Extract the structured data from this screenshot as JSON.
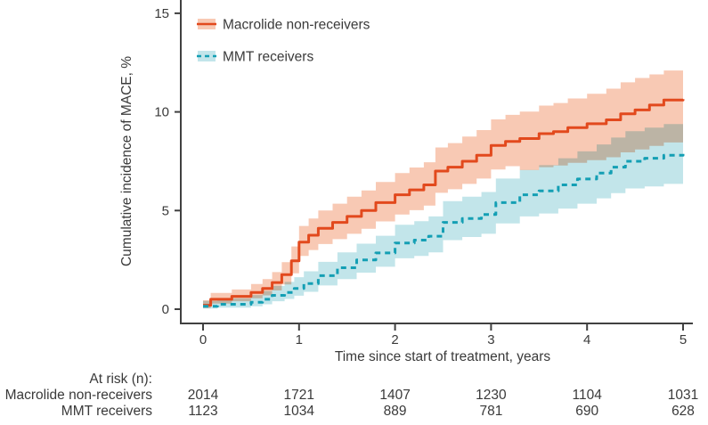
{
  "chart_data": {
    "type": "line",
    "subtype": "cumulative_incidence_step_curves_with_confidence_bands",
    "title": "",
    "xlabel": "Time since start of treatment, years",
    "ylabel": "Cumulative incidence of MACE, %",
    "xlim": [
      0,
      5
    ],
    "ylim": [
      0,
      15
    ],
    "x_ticks": [
      "0",
      "1",
      "2",
      "3",
      "4",
      "5"
    ],
    "y_ticks": [
      "0",
      "5",
      "10",
      "15"
    ],
    "grid": false,
    "legend_position": "top-left inside plot",
    "axis_color": "#404040",
    "text_color": "#3a3a3a",
    "band_overlap_color": "#b5bdb2",
    "series": [
      {
        "name": "Macrolide non-receivers",
        "line_style": "solid",
        "color": "#e2491d",
        "band_color": "#f8c9b4",
        "points_t_v_lo_hi": [
          [
            0.0,
            0.2,
            0.06,
            0.45
          ],
          [
            0.08,
            0.5,
            0.28,
            0.82
          ],
          [
            0.3,
            0.65,
            0.4,
            1.0
          ],
          [
            0.5,
            0.85,
            0.55,
            1.28
          ],
          [
            0.62,
            1.05,
            0.7,
            1.52
          ],
          [
            0.72,
            1.35,
            0.95,
            1.88
          ],
          [
            0.82,
            1.75,
            1.25,
            2.38
          ],
          [
            0.92,
            2.45,
            1.82,
            3.18
          ],
          [
            1.0,
            3.4,
            2.7,
            4.22
          ],
          [
            1.1,
            3.75,
            3.0,
            4.6
          ],
          [
            1.2,
            4.1,
            3.3,
            5.0
          ],
          [
            1.35,
            4.4,
            3.55,
            5.35
          ],
          [
            1.5,
            4.7,
            3.82,
            5.7
          ],
          [
            1.65,
            5.0,
            4.08,
            6.02
          ],
          [
            1.8,
            5.4,
            4.45,
            6.45
          ],
          [
            2.0,
            5.8,
            4.8,
            6.9
          ],
          [
            2.15,
            6.05,
            5.02,
            7.18
          ],
          [
            2.3,
            6.3,
            5.25,
            7.45
          ],
          [
            2.42,
            7.0,
            5.9,
            8.2
          ],
          [
            2.55,
            7.2,
            6.08,
            8.42
          ],
          [
            2.7,
            7.5,
            6.35,
            8.75
          ],
          [
            2.85,
            7.8,
            6.62,
            9.08
          ],
          [
            3.0,
            8.3,
            7.08,
            9.62
          ],
          [
            3.15,
            8.5,
            7.25,
            9.85
          ],
          [
            3.3,
            8.65,
            7.05,
            10.02
          ],
          [
            3.5,
            8.9,
            7.2,
            10.32
          ],
          [
            3.65,
            9.0,
            7.28,
            10.45
          ],
          [
            3.8,
            9.2,
            7.42,
            10.68
          ],
          [
            4.0,
            9.4,
            7.55,
            10.92
          ],
          [
            4.2,
            9.6,
            7.7,
            11.18
          ],
          [
            4.35,
            9.9,
            7.95,
            11.5
          ],
          [
            4.5,
            10.1,
            8.1,
            11.72
          ],
          [
            4.65,
            10.35,
            8.28,
            11.9
          ],
          [
            4.8,
            10.6,
            8.45,
            12.1
          ],
          [
            5.0,
            10.65,
            8.5,
            12.15
          ]
        ]
      },
      {
        "name": "MMT receivers",
        "line_style": "dashed",
        "color": "#149fb4",
        "band_color": "#c2e5ea",
        "points_t_v_lo_hi": [
          [
            0.0,
            0.15,
            0.03,
            0.42
          ],
          [
            0.15,
            0.25,
            0.08,
            0.55
          ],
          [
            0.5,
            0.35,
            0.15,
            0.72
          ],
          [
            0.62,
            0.5,
            0.25,
            0.92
          ],
          [
            0.72,
            0.7,
            0.4,
            1.18
          ],
          [
            0.85,
            0.85,
            0.52,
            1.38
          ],
          [
            0.95,
            1.05,
            0.68,
            1.62
          ],
          [
            1.05,
            1.3,
            0.88,
            1.92
          ],
          [
            1.2,
            1.7,
            1.2,
            2.4
          ],
          [
            1.4,
            2.1,
            1.52,
            2.88
          ],
          [
            1.6,
            2.5,
            1.85,
            3.32
          ],
          [
            1.8,
            2.85,
            2.15,
            3.72
          ],
          [
            2.0,
            3.35,
            2.58,
            4.28
          ],
          [
            2.2,
            3.5,
            2.7,
            4.46
          ],
          [
            2.35,
            3.7,
            2.88,
            4.7
          ],
          [
            2.5,
            4.4,
            3.5,
            5.48
          ],
          [
            2.7,
            4.6,
            3.66,
            5.7
          ],
          [
            2.9,
            4.8,
            3.82,
            5.94
          ],
          [
            3.05,
            5.4,
            4.35,
            6.62
          ],
          [
            3.3,
            5.8,
            4.7,
            7.06
          ],
          [
            3.5,
            6.0,
            4.85,
            7.3
          ],
          [
            3.7,
            6.3,
            5.1,
            7.65
          ],
          [
            3.9,
            6.6,
            5.35,
            8.0
          ],
          [
            4.1,
            6.9,
            5.62,
            8.35
          ],
          [
            4.25,
            7.2,
            5.88,
            8.7
          ],
          [
            4.4,
            7.5,
            6.12,
            9.02
          ],
          [
            4.6,
            7.65,
            6.22,
            9.2
          ],
          [
            4.8,
            7.8,
            6.35,
            9.38
          ],
          [
            5.0,
            7.95,
            6.45,
            9.55
          ]
        ]
      }
    ]
  },
  "at_risk": {
    "header": "At risk (n):",
    "time_points": [
      "0",
      "1",
      "2",
      "3",
      "4",
      "5"
    ],
    "rows": [
      {
        "label": "Macrolide non-receivers",
        "counts": [
          "2014",
          "1721",
          "1407",
          "1230",
          "1104",
          "1031"
        ]
      },
      {
        "label": "MMT receivers",
        "counts": [
          "1123",
          "1034",
          "889",
          "781",
          "690",
          "628"
        ]
      }
    ]
  }
}
